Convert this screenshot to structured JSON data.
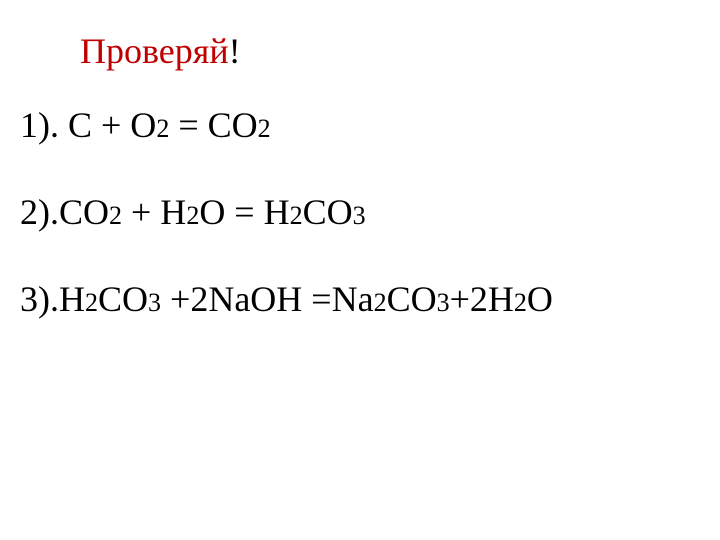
{
  "title": {
    "text": "Проверяй",
    "exclamation": "!",
    "text_color": "#c00000",
    "exclamation_color": "#000000",
    "fontsize": 36
  },
  "equations": {
    "fontsize": 36,
    "sub_fontsize": 26,
    "color": "#000000",
    "items": [
      {
        "prefix": "1). C + O",
        "sub1": "2",
        "mid1": " = CO",
        "sub2": "2",
        "tail": ""
      },
      {
        "prefix": "2).CO",
        "sub1": "2",
        "mid1": " + H",
        "sub2": "2",
        "mid2": "O = H",
        "sub3": "2",
        "mid3": "CO",
        "sub4": "3",
        "tail": ""
      },
      {
        "prefix": "3).H",
        "sub1": "2",
        "mid1": "CO",
        "sub2": "3",
        "mid2": " +2NaOH =Na",
        "sub3": "2",
        "mid3": "CO",
        "sub4": "3",
        "mid4": "+2H",
        "sub5": "2",
        "mid5": "O",
        "tail": ""
      }
    ]
  },
  "background_color": "#ffffff"
}
